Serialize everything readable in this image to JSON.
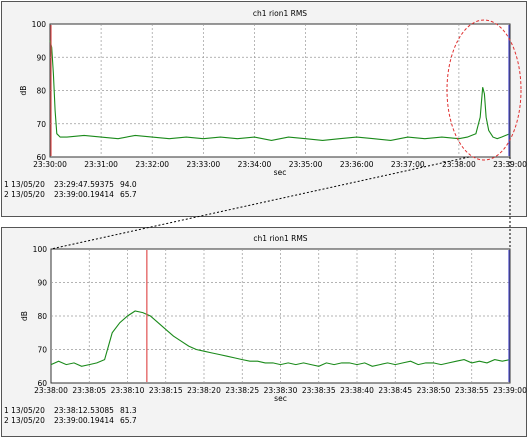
{
  "colors": {
    "line": "#1a8a1a",
    "cursor1": "#e05050",
    "cursor2": "#4a4ac8",
    "grid": "#9a9a9a",
    "highlight": "#e03030"
  },
  "chart_data": [
    {
      "type": "line",
      "title": "ch1 rion1 RMS",
      "xlabel": "sec",
      "ylabel": "dB",
      "xlim_sec": [
        0,
        540
      ],
      "ylim": [
        60,
        100
      ],
      "x_ticks": [
        "23:30:00",
        "23:31:00",
        "23:32:00",
        "23:33:00",
        "23:34:00",
        "23:35:00",
        "23:36:00",
        "23:37:00",
        "23:38:00",
        "23:39:00"
      ],
      "y_ticks": [
        "60",
        "70",
        "80",
        "90",
        "100"
      ],
      "grid": true,
      "series": [
        {
          "x_sec": [
            0,
            2,
            4,
            6,
            8,
            12,
            20,
            40,
            60,
            80,
            100,
            120,
            140,
            160,
            180,
            200,
            220,
            240,
            260,
            280,
            300,
            320,
            340,
            360,
            380,
            400,
            420,
            440,
            460,
            480,
            490,
            495,
            500,
            505,
            508,
            510,
            512,
            515,
            520,
            525,
            530,
            535,
            540
          ],
          "values": [
            95,
            93,
            85,
            74,
            67,
            66,
            66,
            66.5,
            66,
            65.5,
            66.5,
            66,
            65.5,
            66,
            65.5,
            66,
            65.5,
            66,
            65,
            66,
            65.5,
            65,
            65.5,
            66,
            65.5,
            65,
            66,
            65.5,
            66,
            65.5,
            66,
            66.5,
            67,
            72,
            81,
            79,
            72,
            68,
            66,
            65.5,
            66,
            66.5,
            67
          ]
        }
      ],
      "cursors": [
        {
          "num": "1",
          "date": "13/05/20",
          "time": "23:29:47.59375",
          "value": "94.0"
        },
        {
          "num": "2",
          "date": "13/05/20",
          "time": "23:39:00.19414",
          "value": "65.7"
        }
      ],
      "cursor_lines_sec": [
        0.2,
        540
      ]
    },
    {
      "type": "line",
      "title": "ch1 rion1 RMS",
      "xlabel": "sec",
      "ylabel": "dB",
      "xlim_sec": [
        0,
        60
      ],
      "ylim": [
        60,
        100
      ],
      "x_ticks": [
        "23:38:00",
        "23:38:05",
        "23:38:10",
        "23:38:15",
        "23:38:20",
        "23:38:25",
        "23:38:30",
        "23:38:35",
        "23:38:40",
        "23:38:45",
        "23:38:50",
        "23:38:55",
        "23:39:00"
      ],
      "y_ticks": [
        "60",
        "70",
        "80",
        "90",
        "100"
      ],
      "grid": true,
      "series": [
        {
          "x_sec": [
            0,
            1,
            2,
            3,
            4,
            5,
            6,
            7,
            8,
            9,
            10,
            11,
            12,
            13,
            14,
            15,
            16,
            17,
            18,
            19,
            20,
            21,
            22,
            23,
            24,
            25,
            26,
            27,
            28,
            29,
            30,
            31,
            32,
            33,
            34,
            35,
            36,
            37,
            38,
            39,
            40,
            41,
            42,
            43,
            44,
            45,
            46,
            47,
            48,
            49,
            50,
            51,
            52,
            53,
            54,
            55,
            56,
            57,
            58,
            59,
            60
          ],
          "values": [
            65.5,
            66.5,
            65.5,
            66,
            65,
            65.5,
            66,
            67,
            75,
            78,
            80,
            81.5,
            81,
            80,
            78,
            76,
            74,
            72.5,
            71,
            70,
            69.5,
            69,
            68.5,
            68,
            67.5,
            67,
            66.5,
            66.5,
            66,
            66,
            65.5,
            66,
            65.5,
            66,
            65.5,
            65,
            66,
            65.5,
            66,
            66,
            65.5,
            66,
            65,
            65.5,
            66,
            65.5,
            66,
            66.5,
            65.5,
            66,
            66,
            65.5,
            66,
            66.5,
            67,
            66,
            66.5,
            66,
            67,
            66.5,
            67
          ]
        }
      ],
      "cursors": [
        {
          "num": "1",
          "date": "13/05/20",
          "time": "23:38:12.53085",
          "value": "81.3"
        },
        {
          "num": "2",
          "date": "13/05/20",
          "time": "23:39:00.19414",
          "value": "65.7"
        }
      ],
      "cursor_lines_sec": [
        12.53,
        60
      ]
    }
  ]
}
